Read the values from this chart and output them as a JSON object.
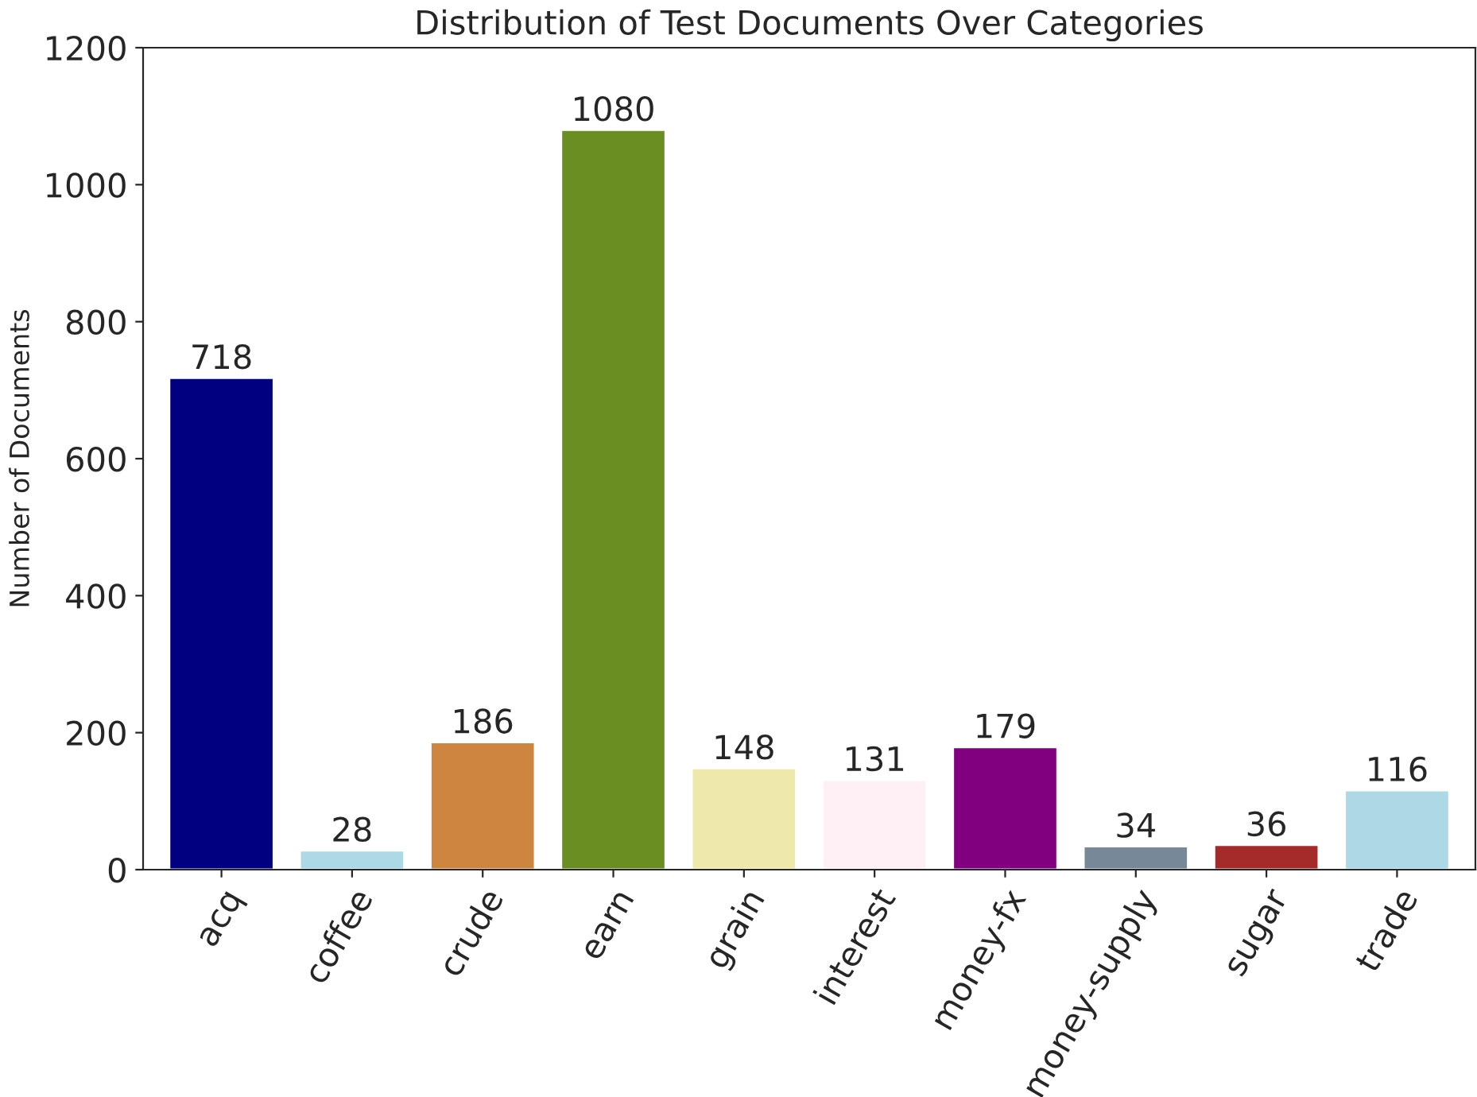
{
  "chart_data": {
    "type": "bar",
    "title": "Distribution of Test Documents Over Categories",
    "ylabel": "Number of Documents",
    "categories": [
      "acq",
      "coffee",
      "crude",
      "earn",
      "grain",
      "interest",
      "money-fx",
      "money-supply",
      "sugar",
      "trade"
    ],
    "values": [
      718,
      28,
      186,
      1080,
      148,
      131,
      179,
      34,
      36,
      116
    ],
    "colors": [
      "#000080",
      "#add8e6",
      "#cd853f",
      "#6b8e23",
      "#eee8aa",
      "#fff0f5",
      "#800080",
      "#778899",
      "#a52a2a",
      "#add8e6"
    ],
    "ylim": [
      0,
      1200
    ],
    "yticks": [
      0,
      200,
      400,
      600,
      800,
      1000,
      1200
    ],
    "data_labels": true,
    "grid": false,
    "legend": false
  }
}
